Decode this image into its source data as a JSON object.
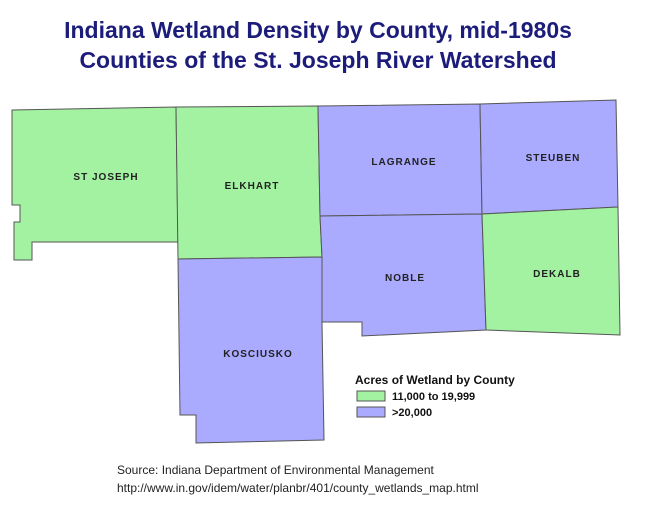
{
  "title": [
    "Indiana Wetland Density by County, mid-1980s",
    "Counties of the St. Joseph River Watershed"
  ],
  "legend": {
    "title": "Acres of Wetland by County",
    "items": [
      {
        "label": "11,000 to 19,999",
        "color": "#a2f2a2"
      },
      {
        "label": ">20,000",
        "color": "#aaaaff"
      }
    ]
  },
  "counties": [
    {
      "name": "ST JOSEPH",
      "class": 0
    },
    {
      "name": "ELKHART",
      "class": 0
    },
    {
      "name": "LAGRANGE",
      "class": 1
    },
    {
      "name": "STEUBEN",
      "class": 1
    },
    {
      "name": "NOBLE",
      "class": 1
    },
    {
      "name": "DEKALB",
      "class": 0
    },
    {
      "name": "KOSCIUSKO",
      "class": 1
    }
  ],
  "source": [
    "Source:  Indiana Department of Environmental Management",
    "http://www.in.gov/idem/water/planbr/401/county_wetlands_map.html"
  ]
}
